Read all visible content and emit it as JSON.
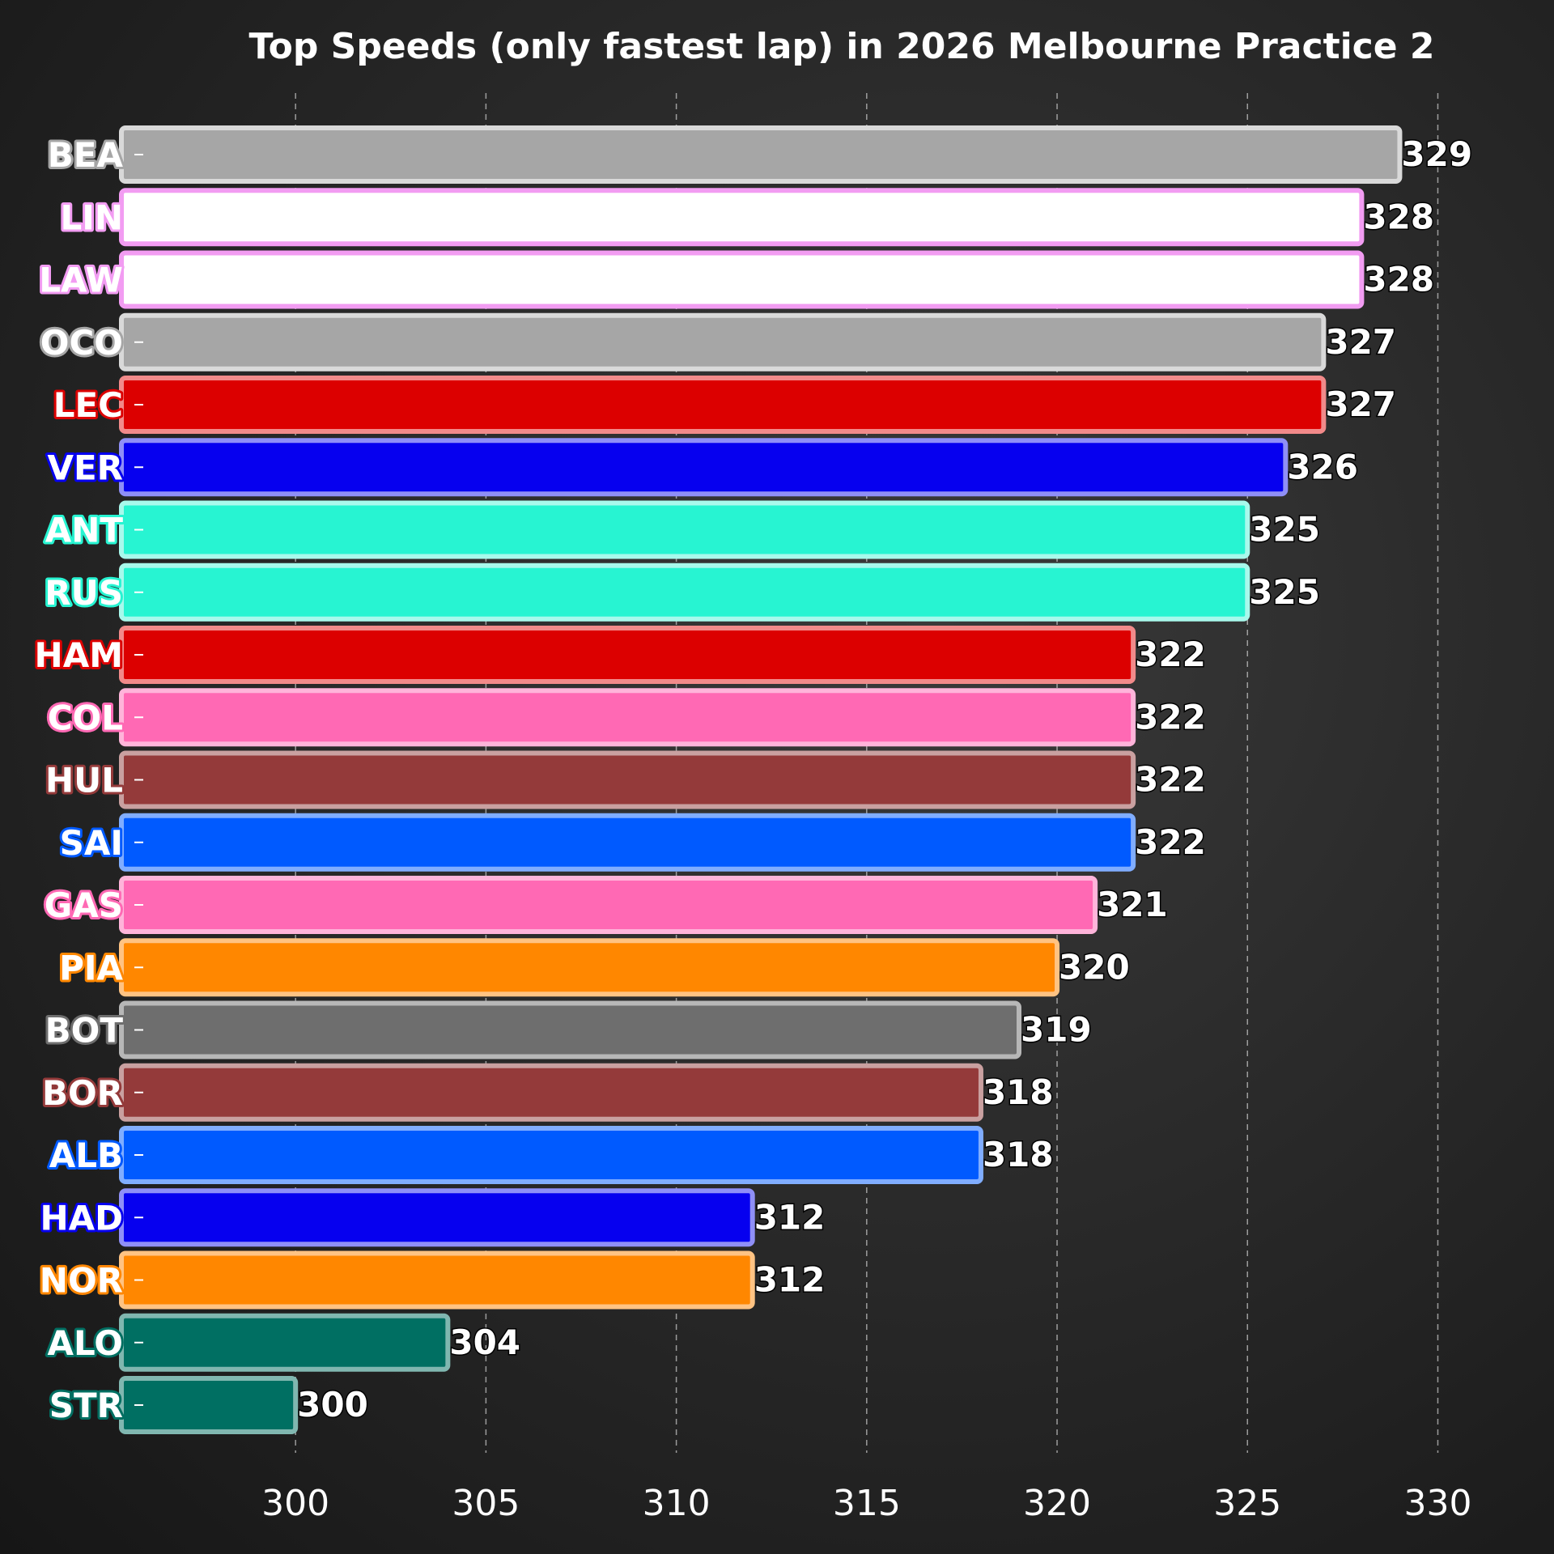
{
  "chart_data": {
    "type": "bar",
    "orientation": "horizontal",
    "title": "Top Speeds (only fastest lap) in 2026 Melbourne Practice 2",
    "xlabel": "",
    "ylabel": "",
    "xlim": [
      296,
      330.5
    ],
    "xticks": [
      300,
      305,
      310,
      315,
      320,
      325,
      330
    ],
    "grid": "vertical-dashed",
    "categories": [
      "BEA",
      "LIN",
      "LAW",
      "OCO",
      "LEC",
      "VER",
      "ANT",
      "RUS",
      "HAM",
      "COL",
      "HUL",
      "SAI",
      "GAS",
      "PIA",
      "BOT",
      "BOR",
      "ALB",
      "HAD",
      "NOR",
      "ALO",
      "STR"
    ],
    "values": [
      329,
      328,
      328,
      327,
      327,
      326,
      325,
      325,
      322,
      322,
      322,
      322,
      321,
      320,
      319,
      318,
      318,
      312,
      312,
      304,
      300
    ],
    "bar_colors": [
      "#a6a6a6",
      "#ffffff",
      "#ffffff",
      "#a6a6a6",
      "#dc0000",
      "#0600ef",
      "#27f4d2",
      "#27f4d2",
      "#dc0000",
      "#ff69b4",
      "#943a3a",
      "#005aff",
      "#ff69b4",
      "#ff8700",
      "#6e6e6e",
      "#943a3a",
      "#005aff",
      "#0600ef",
      "#ff8700",
      "#006f62",
      "#006f62"
    ],
    "edge_colors": [
      "#d9d9d9",
      "#f29cf2",
      "#f29cf2",
      "#d9d9d9",
      "#f28a8a",
      "#8f8ff7",
      "#a8f9ec",
      "#a8f9ec",
      "#f28a8a",
      "#ffb4da",
      "#c9a0a0",
      "#80adff",
      "#ffb4da",
      "#ffc383",
      "#b7b7b7",
      "#c9a0a0",
      "#80adff",
      "#8f8ff7",
      "#ffc383",
      "#80b7b0",
      "#80b7b0"
    ]
  }
}
